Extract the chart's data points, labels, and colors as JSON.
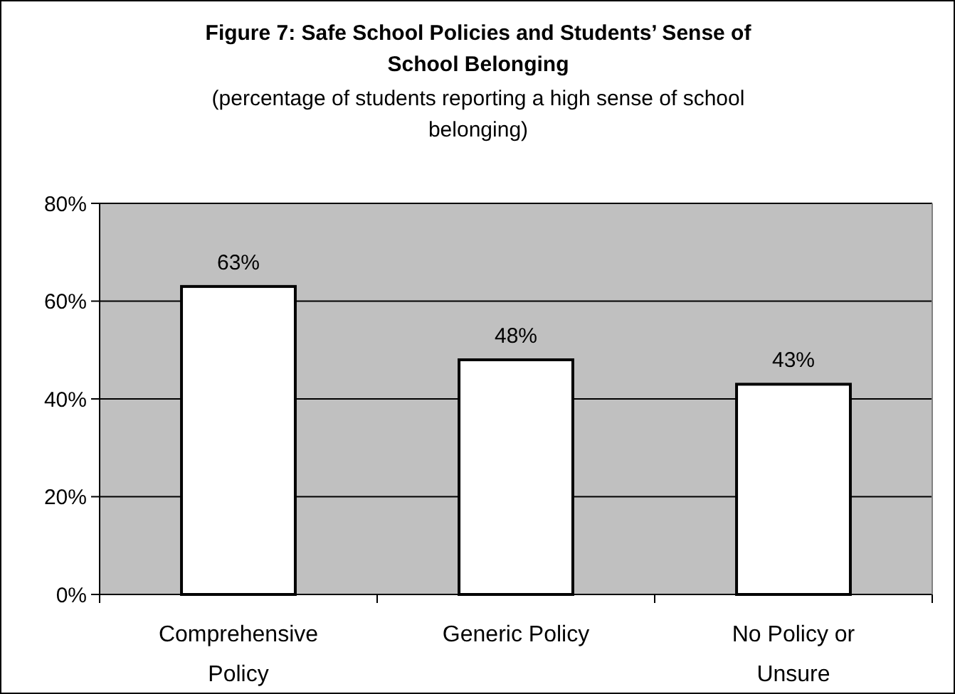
{
  "chart_data": {
    "type": "bar",
    "title": "Figure 7: Safe School Policies and Students’ Sense of School Belonging",
    "subtitle": "(percentage of students reporting a high sense of school belonging)",
    "categories": [
      "Comprehensive Policy",
      "Generic Policy",
      "No Policy or Unsure"
    ],
    "values": [
      63,
      48,
      43
    ],
    "value_labels": [
      "63%",
      "48%",
      "43%"
    ],
    "color": "#ffffff",
    "ylim": [
      0,
      80
    ],
    "yticks": [
      {
        "value": 0,
        "label": "0%"
      },
      {
        "value": 20,
        "label": "20%"
      },
      {
        "value": 40,
        "label": "40%"
      },
      {
        "value": 60,
        "label": "60%"
      },
      {
        "value": 80,
        "label": "80%"
      }
    ],
    "grid": "y"
  }
}
